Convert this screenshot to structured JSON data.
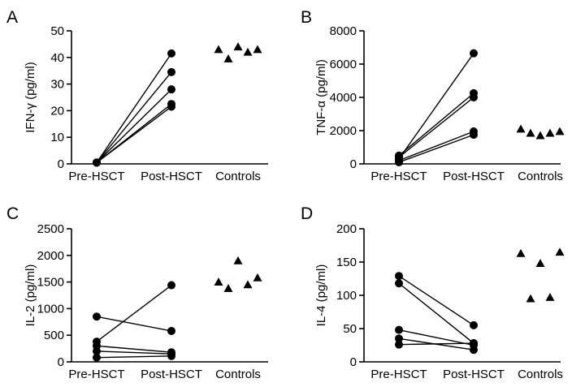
{
  "chart_data": [
    {
      "panel_label": "A",
      "type": "scatter",
      "ylabel": "IFN-γ (pg/ml)",
      "ylim": [
        0,
        50
      ],
      "yticks": [
        0,
        10,
        20,
        30,
        40,
        50
      ],
      "categories": [
        "Pre-HSCT",
        "Post-HSCT",
        "Controls"
      ],
      "paired": [
        {
          "pre": 0.5,
          "post": 41.5
        },
        {
          "pre": 0.5,
          "post": 34.5
        },
        {
          "pre": 0.5,
          "post": 28
        },
        {
          "pre": 0.5,
          "post": 22.5
        },
        {
          "pre": 0.5,
          "post": 21.5
        }
      ],
      "controls": [
        43,
        39.5,
        44,
        42,
        43
      ]
    },
    {
      "panel_label": "B",
      "type": "scatter",
      "ylabel": "TNF-α (pg/ml)",
      "ylim": [
        0,
        8000
      ],
      "yticks": [
        0,
        2000,
        4000,
        6000,
        8000
      ],
      "categories": [
        "Pre-HSCT",
        "Post-HSCT",
        "Controls"
      ],
      "paired": [
        {
          "pre": 300,
          "post": 6650
        },
        {
          "pre": 500,
          "post": 4250
        },
        {
          "pre": 400,
          "post": 4000
        },
        {
          "pre": 200,
          "post": 1950
        },
        {
          "pre": 100,
          "post": 1750
        }
      ],
      "controls": [
        2100,
        1850,
        1700,
        1850,
        1950
      ]
    },
    {
      "panel_label": "C",
      "type": "scatter",
      "ylabel": "IL-2 (pg/ml)",
      "ylim": [
        0,
        2500
      ],
      "yticks": [
        0,
        500,
        1000,
        1500,
        2000,
        2500
      ],
      "categories": [
        "Pre-HSCT",
        "Post-HSCT",
        "Controls"
      ],
      "paired": [
        {
          "pre": 850,
          "post": 580
        },
        {
          "pre": 380,
          "post": 1440
        },
        {
          "pre": 300,
          "post": 180
        },
        {
          "pre": 200,
          "post": 150
        },
        {
          "pre": 80,
          "post": 110
        }
      ],
      "controls": [
        1500,
        1380,
        1900,
        1450,
        1580
      ]
    },
    {
      "panel_label": "D",
      "type": "scatter",
      "ylabel": "IL-4 (pg/ml)",
      "ylim": [
        0,
        200
      ],
      "yticks": [
        0,
        50,
        100,
        150,
        200
      ],
      "categories": [
        "Pre-HSCT",
        "Post-HSCT",
        "Controls"
      ],
      "paired": [
        {
          "pre": 129,
          "post": 55
        },
        {
          "pre": 118,
          "post": 28
        },
        {
          "pre": 48,
          "post": 25
        },
        {
          "pre": 35,
          "post": 18
        },
        {
          "pre": 26,
          "post": 28
        }
      ],
      "controls": [
        163,
        95,
        148,
        97,
        165
      ]
    }
  ]
}
